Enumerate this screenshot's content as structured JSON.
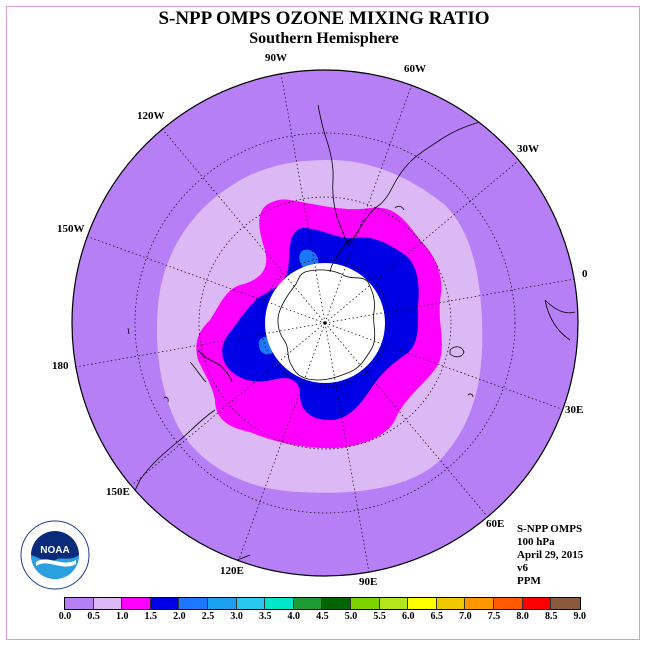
{
  "title": "S-NPP OMPS OZONE MIXING RATIO",
  "subtitle": "Southern Hemisphere",
  "longitude_labels": {
    "l90w": "90W",
    "l60w": "60W",
    "l30w": "30W",
    "l0": "0",
    "l30e": "30E",
    "l60e": "60E",
    "l90e": "90E",
    "l120e": "120E",
    "l150e": "150E",
    "l180": "180",
    "l150w": "150W",
    "l120w": "120W"
  },
  "info": {
    "instrument": "S-NPP OMPS",
    "level": "100 hPa",
    "date": "April 29, 2015",
    "version": "v6",
    "units": "PPM"
  },
  "logo_text": "NOAA",
  "colorbar": {
    "colors": [
      "#b77ff5",
      "#dcb8f5",
      "#ff00ff",
      "#0000e6",
      "#1e78ff",
      "#1ea0f0",
      "#28c8f0",
      "#00e6c8",
      "#1e9b32",
      "#006400",
      "#7ed200",
      "#b4e61e",
      "#ffff00",
      "#f0c800",
      "#ff9600",
      "#ff5a00",
      "#ff0000",
      "#8b5a3c"
    ],
    "ticks": [
      "0.0",
      "0.5",
      "1.0",
      "1.5",
      "2.0",
      "2.5",
      "3.0",
      "3.5",
      "4.0",
      "4.5",
      "5.0",
      "5.5",
      "6.0",
      "6.5",
      "7.0",
      "7.5",
      "8.0",
      "8.5",
      "9.0"
    ]
  },
  "map_data": {
    "projection": "south-polar-stereographic",
    "background_color": "#b77ff5",
    "contour_colors": {
      "0.5-1.0": "#dcb8f5",
      "1.0-1.5": "#ff00ff",
      "1.5-2.0": "#0000e6",
      "2.0-2.5": "#1e78ff",
      "no_data": "#ffffff"
    }
  }
}
